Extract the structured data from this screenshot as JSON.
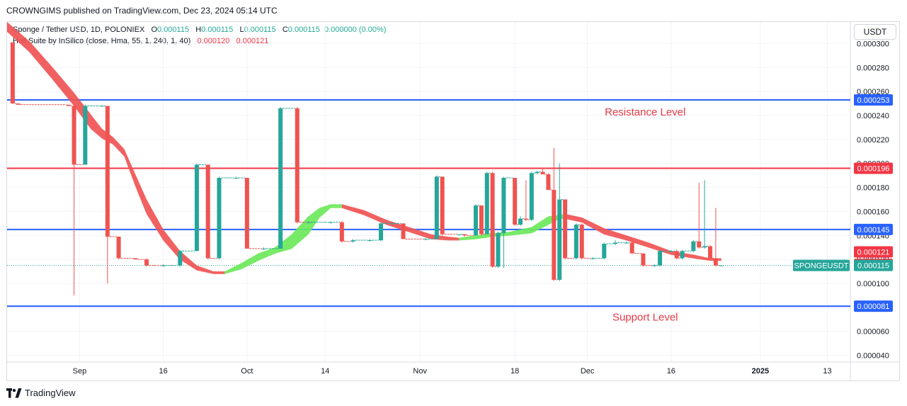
{
  "header": {
    "publisher_line": "CROWNGIMS published on TradingView.com, Dec 23, 2024 05:14 UTC"
  },
  "legend": {
    "symbol": "Sponge / Tether USD, 1D, POLONIEX",
    "o_label": "O",
    "o": "0.000115",
    "h_label": "H",
    "h": "0.000115",
    "l_label": "L",
    "l": "0.000115",
    "c_label": "C",
    "c": "0.000115",
    "change": "0.000000 (0.00%)",
    "indicator": "Hull Suite by InSilico (close, Hma, 55, 1, 240, 1, 40)",
    "ind_v1": "0.000120",
    "ind_v2": "0.000121"
  },
  "currency_button": "USDT",
  "footer": {
    "brand": "TradingView"
  },
  "colors": {
    "up": "#26a69a",
    "down": "#ef5350",
    "hull_bear": "#f05454",
    "hull_bull": "#6be85a",
    "support_resistance": "#2962ff",
    "resistance_mid": "#f23645",
    "label_text": "#e53945"
  },
  "chart_data": {
    "type": "candlestick",
    "symbol": "SPONGEUSDT",
    "interval": "1D",
    "ylim": [
      3.5e-05,
      0.000318
    ],
    "y_ticks": [
      "0.000040",
      "0.000060",
      "0.000080",
      "0.000100",
      "0.000120",
      "0.000140",
      "0.000160",
      "0.000180",
      "0.000200",
      "0.000220",
      "0.000240",
      "0.000260",
      "0.000280",
      "0.000300"
    ],
    "x_ticks": [
      {
        "label": "Sep",
        "day": 35
      },
      {
        "label": "16",
        "day": 50
      },
      {
        "label": "Oct",
        "day": 65
      },
      {
        "label": "14",
        "day": 79
      },
      {
        "label": "Nov",
        "day": 96
      },
      {
        "label": "18",
        "day": 113
      },
      {
        "label": "Dec",
        "day": 126
      },
      {
        "label": "16",
        "day": 141
      },
      {
        "label": "2025",
        "day": 157
      },
      {
        "label": "13",
        "day": 169
      }
    ],
    "x_range_days": [
      22,
      173
    ],
    "horizontal_lines": [
      {
        "value": 0.000253,
        "color": "#2962ff",
        "label": "0.000253"
      },
      {
        "value": 0.000196,
        "color": "#f23645",
        "label": "0.000196"
      },
      {
        "value": 0.000145,
        "color": "#2962ff",
        "label": "0.000145"
      },
      {
        "value": 8.1e-05,
        "color": "#2962ff",
        "label": "0.000081"
      }
    ],
    "price_tags": [
      {
        "value": 0.000121,
        "color": "#f23645",
        "label": "0.000121"
      },
      {
        "value": 0.00012,
        "color": "#f23645",
        "label": "0.000120"
      }
    ],
    "last_price": {
      "value": 0.000115,
      "label": "0.000115",
      "symbol_tag": "SPONGEUSDT"
    },
    "annotations": [
      {
        "text": "Resistance Level",
        "value": 0.000243,
        "day": 129
      },
      {
        "text": "Support Level",
        "value": 7.2e-05,
        "day": 129
      }
    ],
    "candles": [
      {
        "d": 23,
        "o": 0.000301,
        "h": 0.000301,
        "l": 0.00025,
        "c": 0.00025
      },
      {
        "d": 24,
        "o": 0.00025,
        "h": 0.00025,
        "l": 0.000249,
        "c": 0.000249
      },
      {
        "d": 33,
        "o": 0.000249,
        "h": 0.000249,
        "l": 0.000248,
        "c": 0.000248
      },
      {
        "d": 34,
        "o": 0.000248,
        "h": 0.000249,
        "l": 9e-05,
        "c": 0.000199
      },
      {
        "d": 36,
        "o": 0.000199,
        "h": 0.000249,
        "l": 0.000199,
        "c": 0.000248
      },
      {
        "d": 39,
        "o": 0.000248,
        "h": 0.000249,
        "l": 0.000248,
        "c": 0.000248
      },
      {
        "d": 40,
        "o": 0.000248,
        "h": 0.000248,
        "l": 0.0001,
        "c": 0.000139
      },
      {
        "d": 42,
        "o": 0.000139,
        "h": 0.000139,
        "l": 0.00012,
        "c": 0.000121
      },
      {
        "d": 45,
        "o": 0.000121,
        "h": 0.000121,
        "l": 0.00012,
        "c": 0.00012
      },
      {
        "d": 47,
        "o": 0.00012,
        "h": 0.000121,
        "l": 0.000114,
        "c": 0.000115
      },
      {
        "d": 50,
        "o": 0.000115,
        "h": 0.000116,
        "l": 0.000114,
        "c": 0.000115
      },
      {
        "d": 53,
        "o": 0.000115,
        "h": 0.000128,
        "l": 0.000114,
        "c": 0.000127
      },
      {
        "d": 56,
        "o": 0.000127,
        "h": 0.0002,
        "l": 0.000127,
        "c": 0.000199
      },
      {
        "d": 58,
        "o": 0.000199,
        "h": 0.000199,
        "l": 0.00012,
        "c": 0.000121
      },
      {
        "d": 60,
        "o": 0.000121,
        "h": 0.000189,
        "l": 0.00012,
        "c": 0.000188
      },
      {
        "d": 63,
        "o": 0.000188,
        "h": 0.000189,
        "l": 0.000188,
        "c": 0.000188
      },
      {
        "d": 65,
        "o": 0.000188,
        "h": 0.000188,
        "l": 0.000129,
        "c": 0.000129
      },
      {
        "d": 68,
        "o": 0.000129,
        "h": 0.00013,
        "l": 0.000128,
        "c": 0.000129
      },
      {
        "d": 71,
        "o": 0.000129,
        "h": 0.000247,
        "l": 0.000129,
        "c": 0.000246
      },
      {
        "d": 74,
        "o": 0.000246,
        "h": 0.000247,
        "l": 0.00015,
        "c": 0.000151
      },
      {
        "d": 76,
        "o": 0.000151,
        "h": 0.000152,
        "l": 0.00015,
        "c": 0.000151
      },
      {
        "d": 80,
        "o": 0.000151,
        "h": 0.000152,
        "l": 0.00015,
        "c": 0.000151
      },
      {
        "d": 82,
        "o": 0.000151,
        "h": 0.000152,
        "l": 0.000134,
        "c": 0.000135
      },
      {
        "d": 84,
        "o": 0.000135,
        "h": 0.000137,
        "l": 0.000134,
        "c": 0.000136
      },
      {
        "d": 87,
        "o": 0.000136,
        "h": 0.000137,
        "l": 0.000135,
        "c": 0.000136
      },
      {
        "d": 89,
        "o": 0.000136,
        "h": 0.000151,
        "l": 0.000135,
        "c": 0.00015
      },
      {
        "d": 91,
        "o": 0.00015,
        "h": 0.000151,
        "l": 0.000149,
        "c": 0.00015
      },
      {
        "d": 93,
        "o": 0.00015,
        "h": 0.00015,
        "l": 0.000137,
        "c": 0.000137
      },
      {
        "d": 97,
        "o": 0.000137,
        "h": 0.000138,
        "l": 0.000136,
        "c": 0.000137
      },
      {
        "d": 99,
        "o": 0.000137,
        "h": 0.00019,
        "l": 0.000137,
        "c": 0.000189
      },
      {
        "d": 100,
        "o": 0.000189,
        "h": 0.000189,
        "l": 0.00014,
        "c": 0.000141
      },
      {
        "d": 103,
        "o": 0.000141,
        "h": 0.000141,
        "l": 0.00014,
        "c": 0.000141
      },
      {
        "d": 104,
        "o": 0.000141,
        "h": 0.000141,
        "l": 0.000139,
        "c": 0.00014
      },
      {
        "d": 106,
        "o": 0.00014,
        "h": 0.000166,
        "l": 0.00014,
        "c": 0.000165
      },
      {
        "d": 107,
        "o": 0.000165,
        "h": 0.000165,
        "l": 0.00014,
        "c": 0.000141
      },
      {
        "d": 108,
        "o": 0.000141,
        "h": 0.000193,
        "l": 0.000141,
        "c": 0.000192
      },
      {
        "d": 109,
        "o": 0.000192,
        "h": 0.000193,
        "l": 0.000113,
        "c": 0.000114
      },
      {
        "d": 110,
        "o": 0.000114,
        "h": 0.000143,
        "l": 0.000113,
        "c": 0.000142
      },
      {
        "d": 111,
        "o": 0.000142,
        "h": 0.000189,
        "l": 0.000113,
        "c": 0.000188
      },
      {
        "d": 113,
        "o": 0.000188,
        "h": 0.000188,
        "l": 0.000148,
        "c": 0.000149
      },
      {
        "d": 114,
        "o": 0.000149,
        "h": 0.000156,
        "l": 0.000148,
        "c": 0.000154
      },
      {
        "d": 115,
        "o": 0.000154,
        "h": 0.000186,
        "l": 0.000152,
        "c": 0.000153
      },
      {
        "d": 116,
        "o": 0.000153,
        "h": 0.000193,
        "l": 0.000152,
        "c": 0.000192
      },
      {
        "d": 117,
        "o": 0.000192,
        "h": 0.000194,
        "l": 0.000191,
        "c": 0.000193
      },
      {
        "d": 118,
        "o": 0.000193,
        "h": 0.000196,
        "l": 0.000191,
        "c": 0.000191
      },
      {
        "d": 119,
        "o": 0.000191,
        "h": 0.000192,
        "l": 0.000178,
        "c": 0.000178
      },
      {
        "d": 120,
        "o": 0.000178,
        "h": 0.000213,
        "l": 0.000102,
        "c": 0.000103
      },
      {
        "d": 121,
        "o": 0.000103,
        "h": 0.0002,
        "l": 0.000102,
        "c": 0.00017
      },
      {
        "d": 122,
        "o": 0.00017,
        "h": 0.00017,
        "l": 0.00012,
        "c": 0.000121
      },
      {
        "d": 124,
        "o": 0.000121,
        "h": 0.00015,
        "l": 0.00012,
        "c": 0.000149
      },
      {
        "d": 125,
        "o": 0.000149,
        "h": 0.00015,
        "l": 0.00012,
        "c": 0.000121
      },
      {
        "d": 127,
        "o": 0.000121,
        "h": 0.000122,
        "l": 0.00012,
        "c": 0.000121
      },
      {
        "d": 129,
        "o": 0.000121,
        "h": 0.000134,
        "l": 0.00012,
        "c": 0.000133
      },
      {
        "d": 131,
        "o": 0.000133,
        "h": 0.000136,
        "l": 0.000132,
        "c": 0.000134
      },
      {
        "d": 133,
        "o": 0.000134,
        "h": 0.000135,
        "l": 0.000133,
        "c": 0.000134
      },
      {
        "d": 134,
        "o": 0.000134,
        "h": 0.000135,
        "l": 0.000125,
        "c": 0.000125
      },
      {
        "d": 136,
        "o": 0.000125,
        "h": 0.000125,
        "l": 0.000114,
        "c": 0.000115
      },
      {
        "d": 138,
        "o": 0.000115,
        "h": 0.000116,
        "l": 0.000114,
        "c": 0.000115
      },
      {
        "d": 139,
        "o": 0.000115,
        "h": 0.000128,
        "l": 0.000114,
        "c": 0.000127
      },
      {
        "d": 141,
        "o": 0.000127,
        "h": 0.000128,
        "l": 0.000126,
        "c": 0.000127
      },
      {
        "d": 142,
        "o": 0.000127,
        "h": 0.000128,
        "l": 0.00012,
        "c": 0.000121
      },
      {
        "d": 143,
        "o": 0.000121,
        "h": 0.000128,
        "l": 0.00012,
        "c": 0.000127
      },
      {
        "d": 145,
        "o": 0.000127,
        "h": 0.000136,
        "l": 0.000126,
        "c": 0.000135
      },
      {
        "d": 146,
        "o": 0.000135,
        "h": 0.000184,
        "l": 0.000129,
        "c": 0.00013
      },
      {
        "d": 147,
        "o": 0.00013,
        "h": 0.000186,
        "l": 0.000129,
        "c": 0.000131
      },
      {
        "d": 148,
        "o": 0.000131,
        "h": 0.000132,
        "l": 0.00012,
        "c": 0.000121
      },
      {
        "d": 149,
        "o": 0.000121,
        "h": 0.000163,
        "l": 0.000114,
        "c": 0.000115
      },
      {
        "d": 150,
        "o": 0.000115,
        "h": 0.000115,
        "l": 0.000115,
        "c": 0.000115
      }
    ],
    "hull_band": [
      {
        "d": 22,
        "a": 0.000318,
        "b": 0.000311,
        "trend": "down"
      },
      {
        "d": 26,
        "a": 0.000302,
        "b": 0.000294,
        "trend": "down"
      },
      {
        "d": 30,
        "a": 0.000281,
        "b": 0.000272,
        "trend": "down"
      },
      {
        "d": 34,
        "a": 0.000259,
        "b": 0.000249,
        "trend": "down"
      },
      {
        "d": 37,
        "a": 0.000241,
        "b": 0.00023,
        "trend": "down"
      },
      {
        "d": 39,
        "a": 0.000229,
        "b": 0.000222,
        "trend": "down"
      },
      {
        "d": 41,
        "a": 0.000222,
        "b": 0.000217,
        "trend": "down"
      },
      {
        "d": 43,
        "a": 0.000212,
        "b": 0.000207,
        "trend": "down"
      },
      {
        "d": 45,
        "a": 0.000191,
        "b": 0.000182,
        "trend": "down"
      },
      {
        "d": 47,
        "a": 0.00017,
        "b": 0.000159,
        "trend": "down"
      },
      {
        "d": 50,
        "a": 0.000145,
        "b": 0.000137,
        "trend": "down"
      },
      {
        "d": 53,
        "a": 0.000127,
        "b": 0.000121,
        "trend": "down"
      },
      {
        "d": 56,
        "a": 0.000115,
        "b": 0.000112,
        "trend": "down"
      },
      {
        "d": 59,
        "a": 0.00011,
        "b": 0.000109,
        "trend": "down"
      },
      {
        "d": 61,
        "a": 0.00011,
        "b": 0.000109,
        "trend": "up"
      },
      {
        "d": 64,
        "a": 0.000117,
        "b": 0.000113,
        "trend": "up"
      },
      {
        "d": 67,
        "a": 0.000125,
        "b": 0.00012,
        "trend": "up"
      },
      {
        "d": 70,
        "a": 0.00013,
        "b": 0.000126,
        "trend": "up"
      },
      {
        "d": 73,
        "a": 0.000141,
        "b": 0.00013,
        "trend": "up"
      },
      {
        "d": 76,
        "a": 0.000156,
        "b": 0.000142,
        "trend": "up"
      },
      {
        "d": 78,
        "a": 0.000163,
        "b": 0.000156,
        "trend": "up"
      },
      {
        "d": 80,
        "a": 0.000166,
        "b": 0.000164,
        "trend": "up"
      },
      {
        "d": 82,
        "a": 0.000166,
        "b": 0.000164,
        "trend": "down"
      },
      {
        "d": 86,
        "a": 0.000161,
        "b": 0.000158,
        "trend": "down"
      },
      {
        "d": 90,
        "a": 0.000153,
        "b": 0.00015,
        "trend": "down"
      },
      {
        "d": 94,
        "a": 0.000147,
        "b": 0.000144,
        "trend": "down"
      },
      {
        "d": 98,
        "a": 0.000141,
        "b": 0.000138,
        "trend": "down"
      },
      {
        "d": 101,
        "a": 0.000139,
        "b": 0.000137,
        "trend": "down"
      },
      {
        "d": 103,
        "a": 0.000138,
        "b": 0.000137,
        "trend": "up"
      },
      {
        "d": 106,
        "a": 0.00014,
        "b": 0.000138,
        "trend": "up"
      },
      {
        "d": 109,
        "a": 0.000142,
        "b": 0.00014,
        "trend": "up"
      },
      {
        "d": 112,
        "a": 0.000143,
        "b": 0.000141,
        "trend": "up"
      },
      {
        "d": 116,
        "a": 0.000147,
        "b": 0.000143,
        "trend": "up"
      },
      {
        "d": 119,
        "a": 0.000156,
        "b": 0.00015,
        "trend": "up"
      },
      {
        "d": 121,
        "a": 0.000157,
        "b": 0.000155,
        "trend": "up"
      },
      {
        "d": 122,
        "a": 0.000158,
        "b": 0.000155,
        "trend": "down"
      },
      {
        "d": 125,
        "a": 0.000155,
        "b": 0.000152,
        "trend": "down"
      },
      {
        "d": 129,
        "a": 0.000146,
        "b": 0.000142,
        "trend": "down"
      },
      {
        "d": 133,
        "a": 0.00014,
        "b": 0.000137,
        "trend": "down"
      },
      {
        "d": 137,
        "a": 0.000134,
        "b": 0.000131,
        "trend": "down"
      },
      {
        "d": 141,
        "a": 0.000127,
        "b": 0.000125,
        "trend": "down"
      },
      {
        "d": 145,
        "a": 0.000124,
        "b": 0.000122,
        "trend": "down"
      },
      {
        "d": 148,
        "a": 0.000121,
        "b": 0.00012,
        "trend": "down"
      },
      {
        "d": 150,
        "a": 0.000121,
        "b": 0.00012,
        "trend": "down"
      }
    ]
  }
}
